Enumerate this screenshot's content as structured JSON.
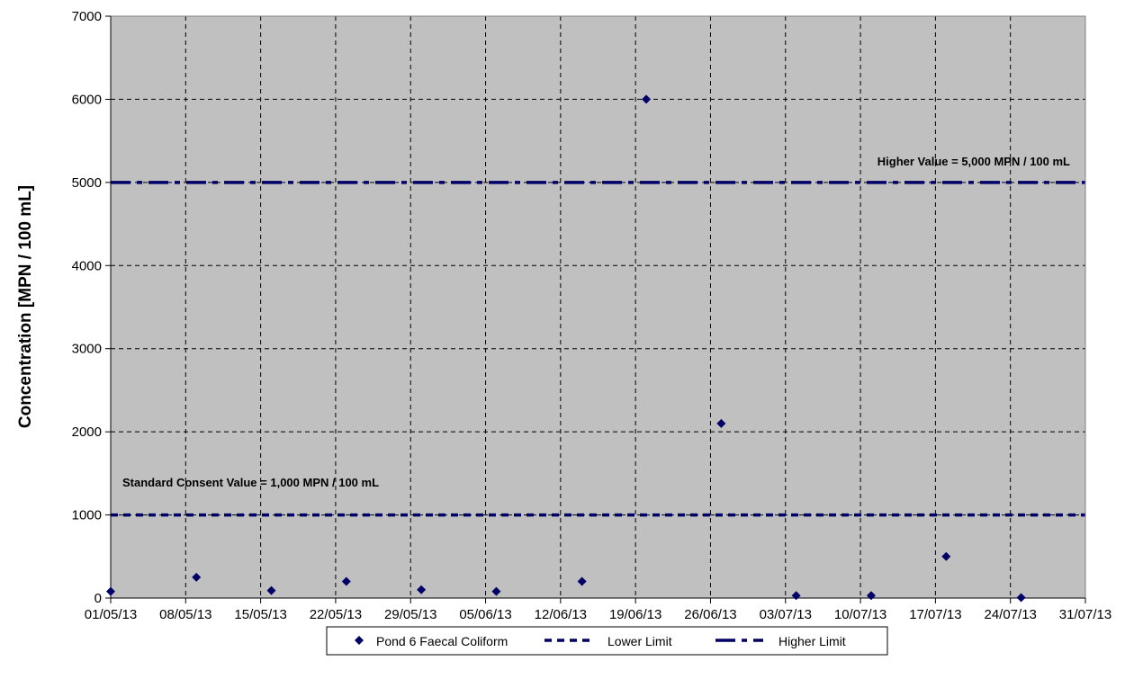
{
  "chart_data": {
    "type": "scatter",
    "ylabel": "Concentration [MPN / 100 mL]",
    "xlabel": "",
    "title": "",
    "ylim": [
      0,
      7000
    ],
    "yticks": [
      0,
      1000,
      2000,
      3000,
      4000,
      5000,
      6000,
      7000
    ],
    "xlim": [
      "01/05/13",
      "31/07/13"
    ],
    "xticks": [
      "01/05/13",
      "08/05/13",
      "15/05/13",
      "22/05/13",
      "29/05/13",
      "05/06/13",
      "12/06/13",
      "19/06/13",
      "26/06/13",
      "03/07/13",
      "10/07/13",
      "17/07/13",
      "24/07/13",
      "31/07/13"
    ],
    "grid": true,
    "legend_position": "bottom",
    "series": [
      {
        "name": "Pond 6 Faecal Coliform",
        "marker": "diamond",
        "color": "#000066",
        "points": [
          {
            "x": "01/05/13",
            "y": 80
          },
          {
            "x": "09/05/13",
            "y": 250
          },
          {
            "x": "16/05/13",
            "y": 90
          },
          {
            "x": "23/05/13",
            "y": 200
          },
          {
            "x": "30/05/13",
            "y": 100
          },
          {
            "x": "06/06/13",
            "y": 80
          },
          {
            "x": "14/06/13",
            "y": 200
          },
          {
            "x": "20/06/13",
            "y": 6000
          },
          {
            "x": "27/06/13",
            "y": 2100
          },
          {
            "x": "04/07/13",
            "y": 30
          },
          {
            "x": "11/07/13",
            "y": 30
          },
          {
            "x": "18/07/13",
            "y": 500
          },
          {
            "x": "25/07/13",
            "y": 5
          }
        ]
      },
      {
        "name": "Lower Limit",
        "type": "hline",
        "y": 1000,
        "color": "#000066",
        "style": "dotted"
      },
      {
        "name": "Higher Limit",
        "type": "hline",
        "y": 5000,
        "color": "#000066",
        "style": "dash-dot"
      }
    ],
    "annotations": [
      {
        "text": "Higher Value = 5,000 MPN / 100 mL",
        "anchor_y": 5000
      },
      {
        "text": "Standard Consent Value = 1,000 MPN / 100 mL",
        "anchor_y": 1000
      }
    ],
    "plot_background": "#c0c0c0"
  }
}
